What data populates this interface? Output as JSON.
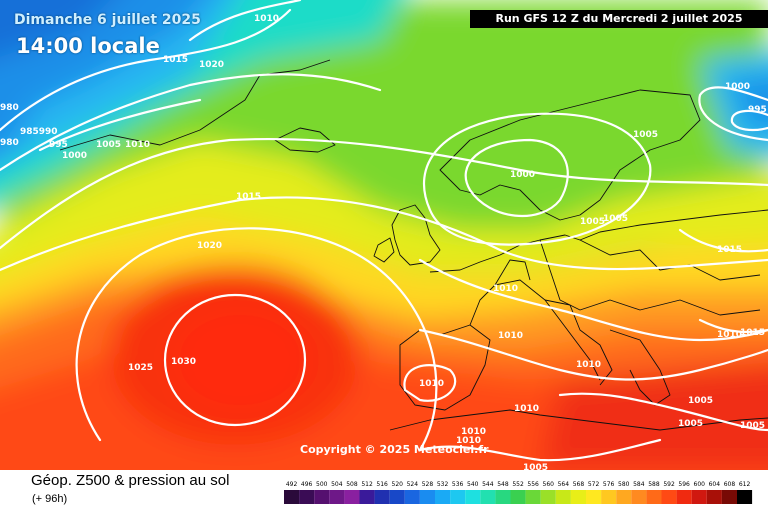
{
  "header": {
    "date": "Dimanche 6 juillet 2025",
    "time": "14:00 locale",
    "run": "Run GFS 12 Z du Mercredi 2 juillet 2025"
  },
  "copyright": "Copyright © 2025 Meteociel.fr",
  "footer": {
    "title": "Géop. Z500 & pression au sol",
    "subtitle": "(+ 96h)"
  },
  "legend": {
    "values": [
      "492",
      "496",
      "500",
      "504",
      "508",
      "512",
      "516",
      "520",
      "524",
      "528",
      "532",
      "536",
      "540",
      "544",
      "548",
      "552",
      "556",
      "560",
      "564",
      "568",
      "572",
      "576",
      "580",
      "584",
      "588",
      "592",
      "596",
      "600",
      "604",
      "608",
      "612"
    ],
    "colors": [
      "#2a0a3a",
      "#3a0c55",
      "#55106f",
      "#6e1888",
      "#8a20a0",
      "#3a1a9a",
      "#2030b0",
      "#1848c8",
      "#1a66e0",
      "#1a8cf0",
      "#1aaaf5",
      "#1ec8f0",
      "#1ee0e0",
      "#22e0b0",
      "#28d880",
      "#3ad050",
      "#6ad838",
      "#9ae028",
      "#c8e818",
      "#e8ee18",
      "#ffe820",
      "#ffc820",
      "#ffa820",
      "#ff8a20",
      "#ff6a18",
      "#ff4a14",
      "#f02a10",
      "#d01810",
      "#a81008",
      "#780a05",
      "#000000"
    ]
  },
  "isobar_labels": [
    "1010",
    "1015",
    "1020",
    "985990",
    "980",
    "995",
    "1000",
    "1005",
    "1010",
    "1000",
    "995",
    "1005",
    "1000",
    "1005",
    "1015",
    "1010",
    "1015",
    "1015",
    "1020",
    "1025",
    "1030",
    "1010",
    "1010",
    "1010",
    "1010",
    "1010",
    "1010",
    "1005",
    "1005",
    "1010",
    "1005",
    "1005",
    "1005",
    "980"
  ]
}
